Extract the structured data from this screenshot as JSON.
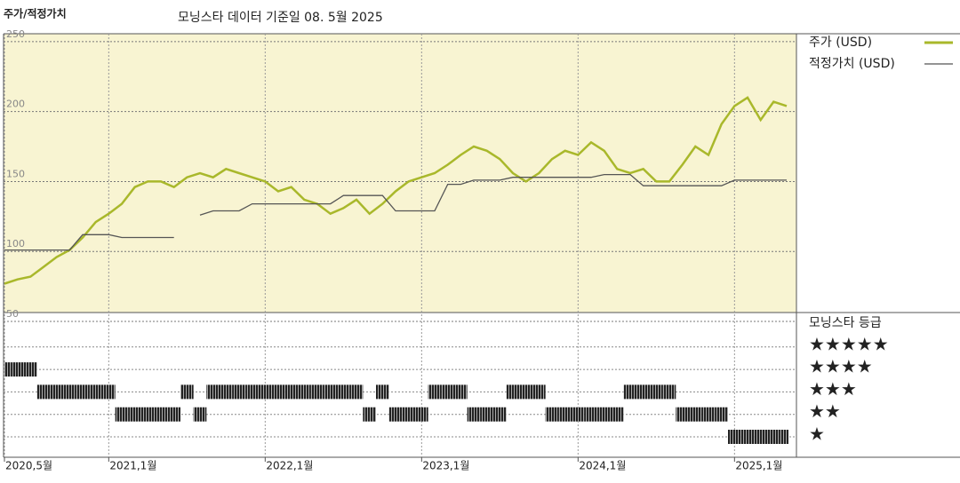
{
  "chart_data": {
    "type": "line",
    "title": "주가/적정가치",
    "subtitle": "모닝스타 데이터 기준일 08. 5월 2025",
    "x": [
      "2020-05",
      "2020-06",
      "2020-07",
      "2020-08",
      "2020-09",
      "2020-10",
      "2020-11",
      "2020-12",
      "2021-01",
      "2021-02",
      "2021-03",
      "2021-04",
      "2021-05",
      "2021-06",
      "2021-07",
      "2021-08",
      "2021-09",
      "2021-10",
      "2021-11",
      "2021-12",
      "2022-01",
      "2022-02",
      "2022-03",
      "2022-04",
      "2022-05",
      "2022-06",
      "2022-07",
      "2022-08",
      "2022-09",
      "2022-10",
      "2022-11",
      "2022-12",
      "2023-01",
      "2023-02",
      "2023-03",
      "2023-04",
      "2023-05",
      "2023-06",
      "2023-07",
      "2023-08",
      "2023-09",
      "2023-10",
      "2023-11",
      "2023-12",
      "2024-01",
      "2024-02",
      "2024-03",
      "2024-04",
      "2024-05",
      "2024-06",
      "2024-07",
      "2024-08",
      "2024-09",
      "2024-10",
      "2024-11",
      "2024-12",
      "2025-01",
      "2025-02",
      "2025-03",
      "2025-04",
      "2025-05"
    ],
    "series": [
      {
        "name": "주가 (USD)",
        "color": "#a9b82b",
        "values": [
          77,
          80,
          82,
          89,
          96,
          101,
          110,
          121,
          127,
          134,
          146,
          150,
          150,
          146,
          153,
          156,
          153,
          159,
          156,
          153,
          150,
          143,
          146,
          137,
          134,
          127,
          131,
          137,
          127,
          134,
          143,
          150,
          153,
          156,
          162,
          169,
          175,
          172,
          166,
          156,
          150,
          156,
          166,
          172,
          169,
          178,
          172,
          159,
          156,
          159,
          150,
          150,
          162,
          175,
          169,
          191,
          204,
          210,
          194,
          207,
          204
        ]
      },
      {
        "name": "적정가치 (USD)",
        "color": "#555555",
        "values": [
          101,
          101,
          101,
          101,
          101,
          101,
          112,
          112,
          112,
          110,
          110,
          110,
          110,
          110,
          null,
          126,
          129,
          129,
          129,
          134,
          134,
          134,
          134,
          134,
          134,
          134,
          140,
          140,
          140,
          140,
          129,
          129,
          129,
          129,
          148,
          148,
          151,
          151,
          151,
          153,
          153,
          153,
          153,
          153,
          153,
          153,
          155,
          155,
          155,
          147,
          147,
          147,
          147,
          147,
          147,
          147,
          151,
          151,
          151,
          151,
          151
        ]
      }
    ],
    "xlim": [
      "2020-05",
      "2025-05"
    ],
    "xticks": [
      {
        "value": "2020-05",
        "label": "2020,5월"
      },
      {
        "value": "2021-01",
        "label": "2021,1월"
      },
      {
        "value": "2022-01",
        "label": "2022,1월"
      },
      {
        "value": "2023-01",
        "label": "2023,1월"
      },
      {
        "value": "2024-01",
        "label": "2024,1월"
      },
      {
        "value": "2025-01",
        "label": "2025,1월"
      }
    ],
    "ylim": [
      50,
      255
    ],
    "yticks": [
      50,
      100,
      150,
      200,
      250
    ],
    "grid": true,
    "ratings": {
      "title": "모닝스타 등급",
      "levels": [
        5,
        4,
        3,
        2,
        1
      ],
      "level_labels": [
        "★★★★★",
        "★★★★",
        "★★★",
        "★★",
        "★"
      ],
      "values": [
        4,
        4,
        4,
        3,
        3,
        3,
        3,
        3,
        3,
        2,
        2,
        2,
        2,
        2,
        3,
        2,
        3,
        3,
        3,
        3,
        3,
        3,
        3,
        3,
        3,
        3,
        3,
        3,
        2,
        3,
        2,
        2,
        2,
        3,
        3,
        3,
        2,
        2,
        2,
        3,
        3,
        3,
        2,
        2,
        2,
        2,
        2,
        2,
        3,
        3,
        3,
        3,
        2,
        2,
        2,
        2,
        1,
        1,
        1,
        1,
        1
      ]
    }
  }
}
